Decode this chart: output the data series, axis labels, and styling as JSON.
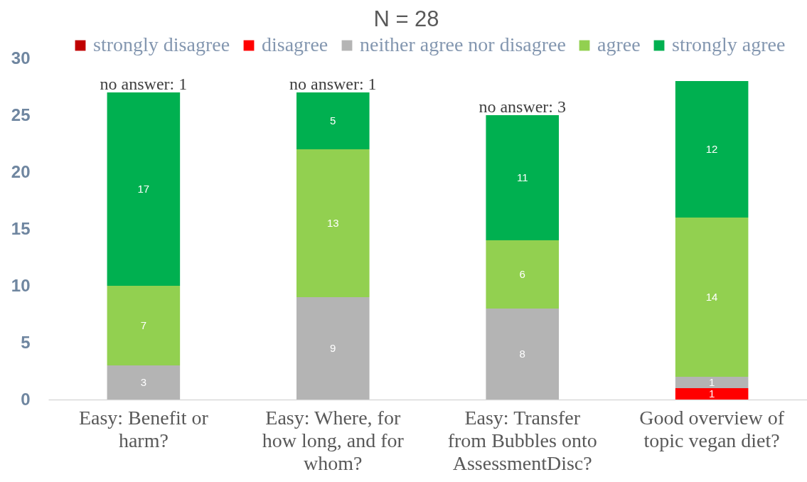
{
  "chart_data": {
    "type": "bar",
    "title": "N = 28",
    "categories": [
      "Easy: Benefit or harm?",
      "Easy: Where, for how long, and for whom?",
      "Easy: Transfer from Bubbles onto AssessmentDisc?",
      "Good overview of topic vegan diet?"
    ],
    "series": [
      {
        "name": "strongly disagree",
        "color": "#c00000",
        "values": [
          null,
          null,
          null,
          null
        ]
      },
      {
        "name": "disagree",
        "color": "#ff0000",
        "values": [
          null,
          null,
          null,
          1
        ]
      },
      {
        "name": "neither agree nor disagree",
        "color": "#b4b4b4",
        "values": [
          3,
          9,
          8,
          1
        ]
      },
      {
        "name": "agree",
        "color": "#92d050",
        "values": [
          7,
          13,
          6,
          14
        ]
      },
      {
        "name": "strongly agree",
        "color": "#00b050",
        "values": [
          17,
          5,
          11,
          12
        ]
      }
    ],
    "stacked": true,
    "data_labels": true,
    "legend": "top",
    "ylim": [
      0,
      30
    ],
    "yticks": [
      0,
      5,
      10,
      15,
      20,
      25,
      30
    ],
    "annotations": [
      {
        "text": "no answer: 1",
        "x": "Easy: Benefit or harm?",
        "y": 27
      },
      {
        "text": "no answer: 1",
        "x": "Easy: Where, for how long, and for whom?",
        "y": 27
      },
      {
        "text": "no answer: 3",
        "x": "Easy: Transfer from Bubbles onto AssessmentDisc?",
        "y": 25
      }
    ]
  }
}
